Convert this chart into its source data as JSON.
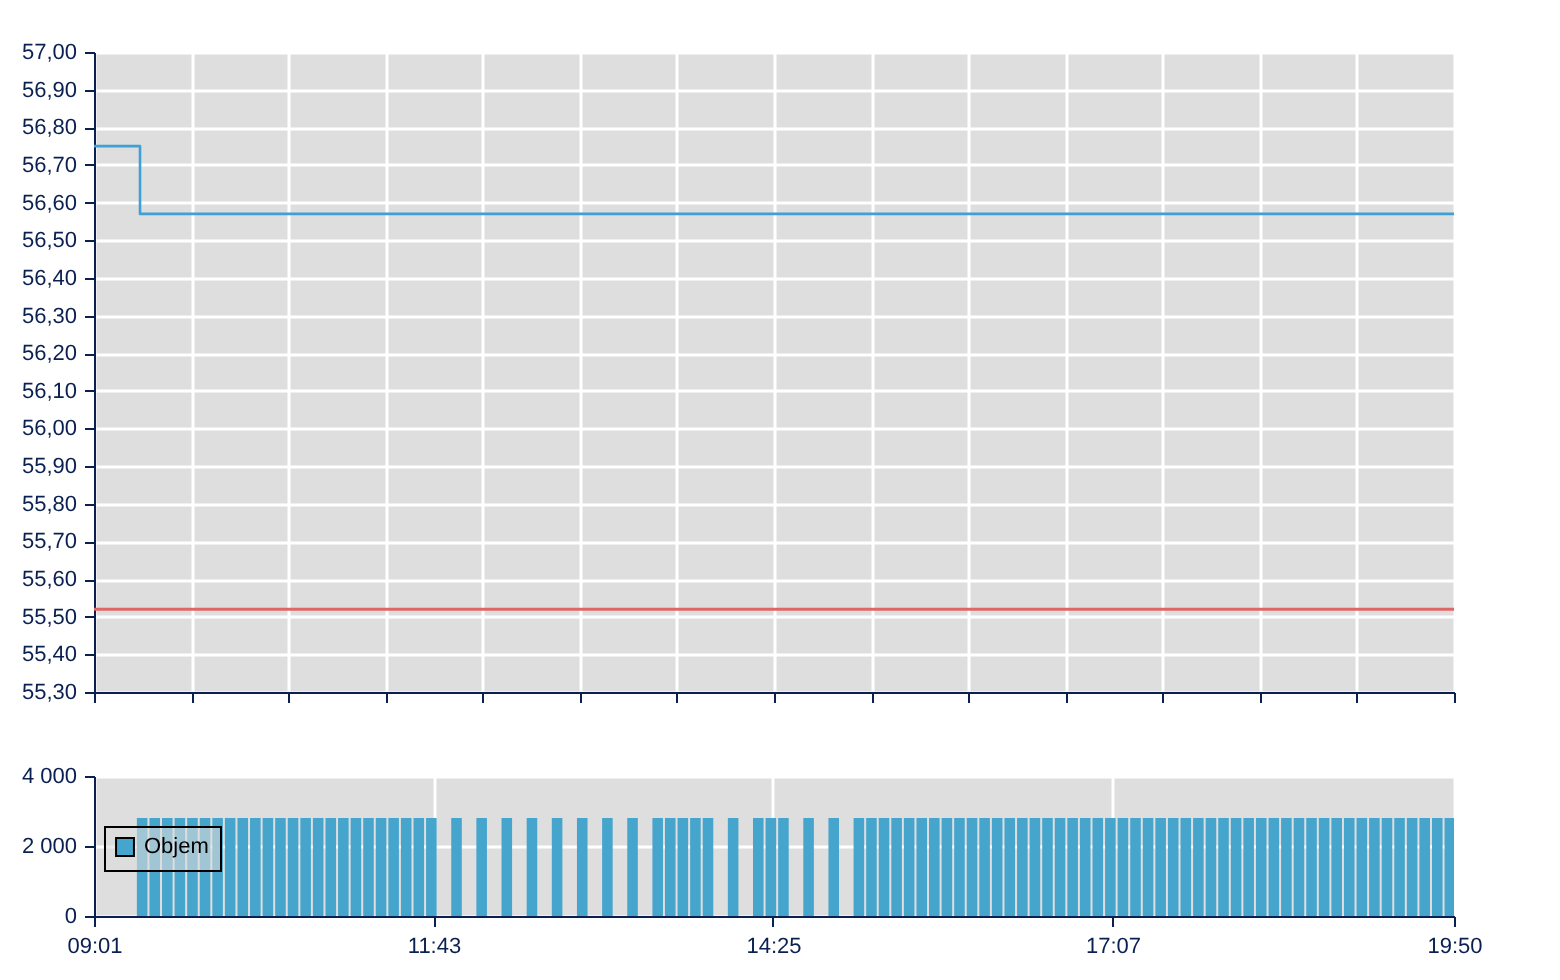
{
  "chart_data": [
    {
      "type": "step",
      "x": [
        9.017,
        9.383,
        19.833
      ],
      "series": [
        {
          "color": "#3fa0d6",
          "values": [
            56.75,
            56.57,
            56.57
          ]
        }
      ],
      "xlim": [
        9.017,
        19.833
      ],
      "xticks": [
        {
          "value": 9.017,
          "label": null
        },
        {
          "value": 9.789,
          "label": null
        },
        {
          "value": 10.562,
          "label": null
        },
        {
          "value": 11.335,
          "label": null
        },
        {
          "value": 12.107,
          "label": null
        },
        {
          "value": 12.88,
          "label": null
        },
        {
          "value": 13.653,
          "label": null
        },
        {
          "value": 14.425,
          "label": null
        },
        {
          "value": 15.198,
          "label": null
        },
        {
          "value": 15.971,
          "label": null
        },
        {
          "value": 16.743,
          "label": null
        },
        {
          "value": 17.516,
          "label": null
        },
        {
          "value": 18.289,
          "label": null
        },
        {
          "value": 19.061,
          "label": null
        },
        {
          "value": 19.833,
          "label": null
        }
      ],
      "ylim": [
        55.3,
        57.0
      ],
      "yticks": [
        {
          "value": 55.3,
          "label": "55,30"
        },
        {
          "value": 55.4,
          "label": "55,40"
        },
        {
          "value": 55.5,
          "label": "55,50"
        },
        {
          "value": 55.6,
          "label": "55,60"
        },
        {
          "value": 55.7,
          "label": "55,70"
        },
        {
          "value": 55.8,
          "label": "55,80"
        },
        {
          "value": 55.9,
          "label": "55,90"
        },
        {
          "value": 56.0,
          "label": "56,00"
        },
        {
          "value": 56.1,
          "label": "56,10"
        },
        {
          "value": 56.2,
          "label": "56,20"
        },
        {
          "value": 56.3,
          "label": "56,30"
        },
        {
          "value": 56.4,
          "label": "56,40"
        },
        {
          "value": 56.5,
          "label": "56,50"
        },
        {
          "value": 56.6,
          "label": "56,60"
        },
        {
          "value": 56.7,
          "label": "56,70"
        },
        {
          "value": 56.8,
          "label": "56,80"
        },
        {
          "value": 56.9,
          "label": "56,90"
        },
        {
          "value": 57.0,
          "label": "57,00"
        }
      ],
      "ref_lines": [
        {
          "axis": "y",
          "value": 55.52,
          "color": "#e06666"
        }
      ],
      "grid": true,
      "tick_labels": "y"
    },
    {
      "type": "bar",
      "x": [
        9.4,
        9.5,
        9.6,
        9.7,
        9.8,
        9.9,
        10.0,
        10.1,
        10.2,
        10.3,
        10.4,
        10.5,
        10.6,
        10.7,
        10.8,
        10.9,
        11.0,
        11.1,
        11.2,
        11.3,
        11.4,
        11.5,
        11.6,
        11.7,
        11.8,
        11.9,
        12.0,
        12.1,
        12.2,
        12.3,
        12.4,
        12.5,
        12.6,
        12.7,
        12.8,
        12.9,
        13.0,
        13.1,
        13.2,
        13.3,
        13.4,
        13.5,
        13.6,
        13.7,
        13.8,
        13.9,
        14.0,
        14.1,
        14.2,
        14.3,
        14.4,
        14.5,
        14.6,
        14.7,
        14.8,
        14.9,
        15.0,
        15.1,
        15.2,
        15.3,
        15.4,
        15.5,
        15.6,
        15.7,
        15.8,
        15.9,
        16.0,
        16.1,
        16.2,
        16.3,
        16.4,
        16.5,
        16.6,
        16.7,
        16.8,
        16.9,
        17.0,
        17.1,
        17.2,
        17.3,
        17.4,
        17.5,
        17.6,
        17.7,
        17.8,
        17.9,
        18.0,
        18.1,
        18.2,
        18.3,
        18.4,
        18.5,
        18.6,
        18.7,
        18.8,
        18.9,
        19.0,
        19.1,
        19.2,
        19.3,
        19.4,
        19.5,
        19.6,
        19.7,
        19.8
      ],
      "series": [
        {
          "name": "Objem",
          "color": "#46a5cd",
          "values": [
            2800,
            2800,
            2800,
            2800,
            2800,
            2800,
            2800,
            2800,
            2800,
            2800,
            2800,
            2800,
            2800,
            2800,
            2800,
            2800,
            2800,
            2800,
            2800,
            2800,
            2800,
            2800,
            2800,
            2800,
            null,
            2800,
            null,
            2800,
            null,
            2800,
            null,
            2800,
            null,
            2800,
            null,
            2800,
            null,
            2800,
            null,
            2800,
            null,
            2800,
            2800,
            2800,
            2800,
            2800,
            null,
            2800,
            null,
            2800,
            2800,
            2800,
            null,
            2800,
            null,
            2800,
            null,
            2800,
            2800,
            2800,
            2800,
            2800,
            2800,
            2800,
            2800,
            2800,
            2800,
            2800,
            2800,
            2800,
            2800,
            2800,
            2800,
            2800,
            2800,
            2800,
            2800,
            2800,
            2800,
            2800,
            2800,
            2800,
            2800,
            2800,
            2800,
            2800,
            2800,
            2800,
            2800,
            2800,
            2800,
            2800,
            2800,
            2800,
            2800,
            2800,
            2800,
            2800,
            2800,
            2800,
            2800,
            2800,
            2800,
            2800,
            2800
          ]
        }
      ],
      "xlim": [
        9.017,
        19.833
      ],
      "xticks": [
        {
          "value": 9.017,
          "label": "09:01"
        },
        {
          "value": 11.717,
          "label": "11:43"
        },
        {
          "value": 14.417,
          "label": "14:25"
        },
        {
          "value": 17.117,
          "label": "17:07"
        },
        {
          "value": 19.833,
          "label": "19:50"
        }
      ],
      "ylim": [
        0,
        4000
      ],
      "yticks": [
        {
          "value": 0,
          "label": "0"
        },
        {
          "value": 2000,
          "label": "2 000"
        },
        {
          "value": 4000,
          "label": "4 000"
        }
      ],
      "grid": true,
      "legend": "left"
    }
  ]
}
